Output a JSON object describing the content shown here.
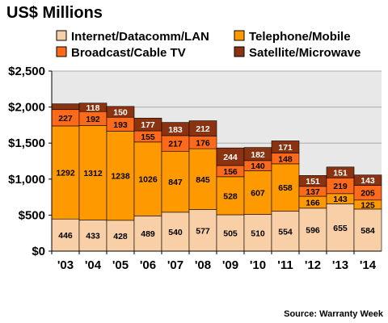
{
  "chart_data": {
    "type": "bar",
    "stacked": true,
    "title": "US$ Millions",
    "source": "Source: Warranty Week",
    "categories": [
      "'03",
      "'04",
      "'05",
      "'06",
      "'07",
      "'08",
      "'09",
      "'10",
      "'11",
      "'12",
      "'13",
      "'14"
    ],
    "ylim": [
      0,
      2500
    ],
    "yticks": [
      0,
      500,
      1000,
      1500,
      2000,
      2500
    ],
    "ytick_labels": [
      "$0",
      "$500",
      "$1,000",
      "$1,500",
      "$2,000",
      "$2,500"
    ],
    "grid": true,
    "series": [
      {
        "name": "Internet/Datacomm/LAN",
        "color": "#f8cfa6",
        "label_color": "#000000",
        "values": [
          446,
          433,
          428,
          489,
          540,
          577,
          505,
          510,
          554,
          596,
          655,
          584
        ]
      },
      {
        "name": "Telephone/Mobile",
        "color": "#ff9900",
        "label_color": "#000000",
        "values": [
          1292,
          1312,
          1238,
          1026,
          847,
          845,
          528,
          607,
          658,
          166,
          143,
          125
        ]
      },
      {
        "name": "Broadcast/Cable TV",
        "color": "#ff6a1a",
        "label_color": "#000000",
        "values": [
          227,
          192,
          193,
          155,
          217,
          176,
          156,
          140,
          148,
          137,
          219,
          205
        ]
      },
      {
        "name": "Satellite/Microwave",
        "color": "#8b3310",
        "label_color": "#ffffff",
        "values": [
          null,
          118,
          150,
          177,
          183,
          212,
          244,
          182,
          171,
          151,
          151,
          143
        ]
      }
    ],
    "top_segment_raw_heights": [
      80,
      118,
      150,
      177,
      183,
      212,
      244,
      182,
      171,
      151,
      151,
      143
    ],
    "legend_placement": "top"
  },
  "colors": {
    "plot_background": "#e8e8e8",
    "grid": "#aaaaaa",
    "axis": "#000000"
  }
}
